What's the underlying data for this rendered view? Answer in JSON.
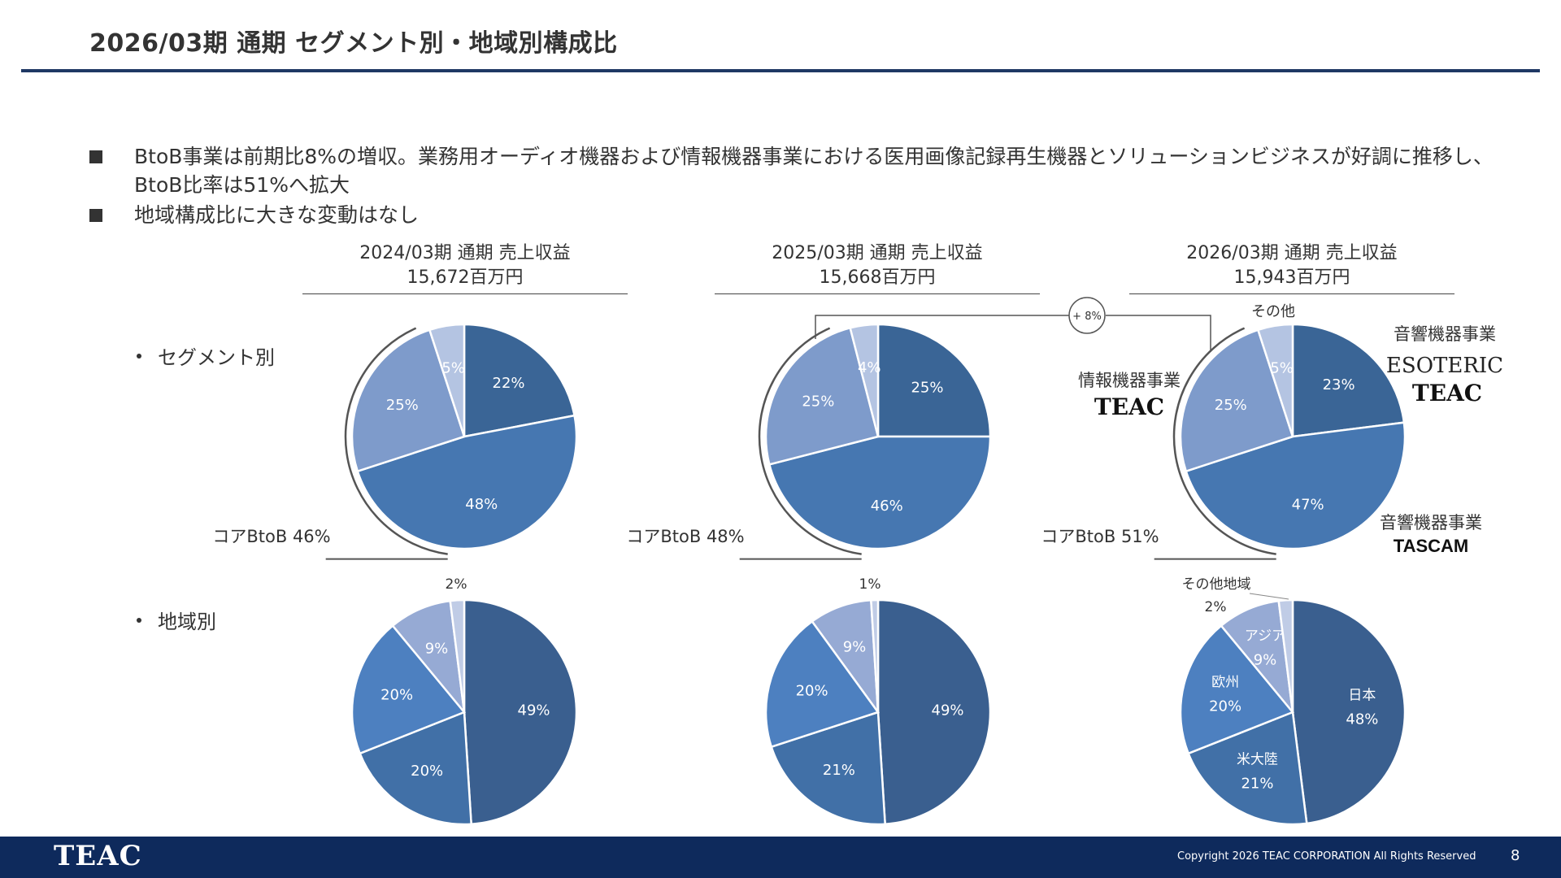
{
  "header": {
    "title": "2026/03期 通期 セグメント別・地域別構成比"
  },
  "bullets": [
    {
      "lines": [
        "BtoB事業は前期比8%の増収。業務用オーディオ機器および情報機器事業における医用画像記録再生機器とソリューションビジネスが好調に推移し、",
        "BtoB比率は51%へ拡大"
      ]
    },
    {
      "lines": [
        "地域構成比に大きな変動はなし"
      ]
    }
  ],
  "columns": [
    {
      "period": "2024/03期 通期 売上収益",
      "revenue": "15,672百万円"
    },
    {
      "period": "2025/03期 通期 売上収益",
      "revenue": "15,668百万円"
    },
    {
      "period": "2026/03期 通期 売上収益",
      "revenue": "15,943百万円"
    }
  ],
  "rows": {
    "segment": "セグメント別",
    "region": "地域別"
  },
  "growth_badge": "+ 8%",
  "segment_annotations": {
    "other": "その他",
    "audio_esoteric_teac": "音響機器事業",
    "audio_tascam": "音響機器事業",
    "info": "情報機器事業",
    "brands": {
      "esoteric": "ESOTERIC",
      "teac_audio": "TEAC",
      "teac_info": "TEAC",
      "tascam": "TASCAM"
    }
  },
  "region_annotations": {
    "other": "その他地域",
    "japan": "日本",
    "americas": "米大陸",
    "europe": "欧州",
    "asia": "アジア"
  },
  "chart_data": [
    {
      "type": "pie",
      "label": "segment-2024",
      "slices": [
        22,
        48,
        25,
        5
      ],
      "value_labels": [
        "22%",
        "48%",
        "25%",
        "5%"
      ],
      "core_label": "コアBtoB 46%",
      "colors": [
        "#3a6596",
        "#4677b1",
        "#7e9bcb",
        "#b4c4e2"
      ]
    },
    {
      "type": "pie",
      "label": "segment-2025",
      "slices": [
        25,
        46,
        25,
        4
      ],
      "value_labels": [
        "25%",
        "46%",
        "25%",
        "4%"
      ],
      "core_label": "コアBtoB 48%",
      "colors": [
        "#3a6596",
        "#4677b1",
        "#7e9bcb",
        "#b4c4e2"
      ]
    },
    {
      "type": "pie",
      "label": "segment-2026",
      "slices": [
        23,
        47,
        25,
        5
      ],
      "value_labels": [
        "23%",
        "47%",
        "25%",
        "5%"
      ],
      "core_label": "コアBtoB 51%",
      "colors": [
        "#3a6596",
        "#4677b1",
        "#7e9bcb",
        "#b4c4e2"
      ]
    },
    {
      "type": "pie",
      "label": "region-2024",
      "slices": [
        49,
        20,
        20,
        9,
        2
      ],
      "value_labels": [
        "49%",
        "20%",
        "20%",
        "9%",
        "2%"
      ],
      "colors": [
        "#3a5f8f",
        "#4170a7",
        "#4d80c0",
        "#96aad4",
        "#c0cce6"
      ]
    },
    {
      "type": "pie",
      "label": "region-2025",
      "slices": [
        49,
        21,
        20,
        9,
        1
      ],
      "value_labels": [
        "49%",
        "21%",
        "20%",
        "9%",
        "1%"
      ],
      "colors": [
        "#3a5f8f",
        "#4170a7",
        "#4d80c0",
        "#96aad4",
        "#c0cce6"
      ]
    },
    {
      "type": "pie",
      "label": "region-2026",
      "slices": [
        48,
        21,
        20,
        9,
        2
      ],
      "value_labels": [
        "48%",
        "21%",
        "20%",
        "9%",
        "2%"
      ],
      "colors": [
        "#3a5f8f",
        "#4170a7",
        "#4d80c0",
        "#96aad4",
        "#c0cce6"
      ]
    }
  ],
  "footer": {
    "logo": "TEAC",
    "copyright": "Copyright 2026 TEAC CORPORATION All Rights Reserved",
    "page": "8"
  }
}
